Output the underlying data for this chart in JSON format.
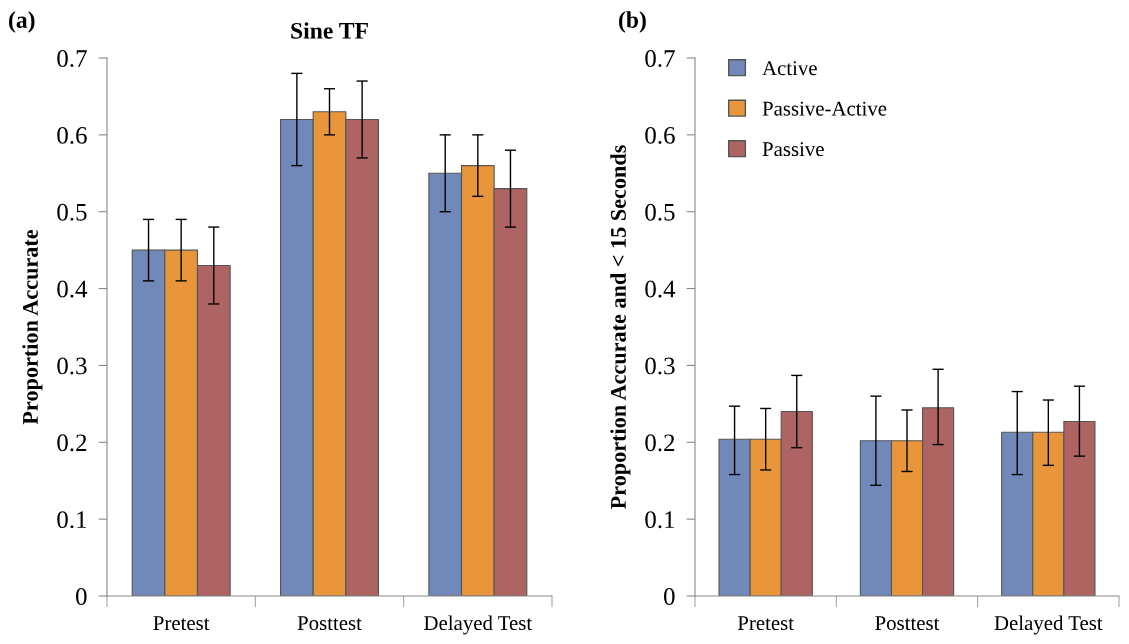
{
  "chart_data": [
    {
      "type": "bar",
      "title": "Sine TF",
      "ylabel": "Proportion Accurate",
      "annotations": [
        "(a)"
      ],
      "categories": [
        "Pretest",
        "Posttest",
        "Delayed Test"
      ],
      "ylim": [
        0,
        0.7
      ],
      "yticks": [
        {
          "value": 0,
          "label": "0"
        },
        0.1,
        0.2,
        0.3,
        0.4,
        0.5,
        0.6,
        0.7
      ],
      "grid": false,
      "legend": false,
      "series": [
        {
          "color": "#7189b8",
          "values": [
            0.45,
            0.62,
            0.55
          ],
          "errors": [
            [
              0.41,
              0.49
            ],
            [
              0.56,
              0.68
            ],
            [
              0.5,
              0.6
            ]
          ]
        },
        {
          "color": "#e9963a",
          "values": [
            0.45,
            0.63,
            0.56
          ],
          "errors": [
            [
              0.41,
              0.49
            ],
            [
              0.6,
              0.66
            ],
            [
              0.52,
              0.6
            ]
          ]
        },
        {
          "color": "#ad6463",
          "values": [
            0.43,
            0.62,
            0.53
          ],
          "errors": [
            [
              0.38,
              0.48
            ],
            [
              0.57,
              0.67
            ],
            [
              0.48,
              0.58
            ]
          ]
        }
      ]
    },
    {
      "type": "bar",
      "ylabel": "Proportion Accurate and < 15 Seconds",
      "annotations": [
        "(b)"
      ],
      "categories": [
        "Pretest",
        "Posttest",
        "Delayed Test"
      ],
      "ylim": [
        0,
        0.7
      ],
      "yticks": [
        {
          "value": 0,
          "label": "0"
        },
        0.1,
        0.2,
        0.3,
        0.4,
        0.5,
        0.6,
        0.7
      ],
      "grid": false,
      "legend": "top left",
      "series": [
        {
          "name": "Active",
          "color": "#7189b8",
          "values": [
            0.204,
            0.202,
            0.213
          ],
          "errors": [
            [
              0.158,
              0.247
            ],
            [
              0.144,
              0.26
            ],
            [
              0.158,
              0.266
            ]
          ]
        },
        {
          "name": "Passive-Active",
          "color": "#e9963a",
          "values": [
            0.204,
            0.202,
            0.213
          ],
          "errors": [
            [
              0.164,
              0.244
            ],
            [
              0.162,
              0.242
            ],
            [
              0.17,
              0.255
            ]
          ]
        },
        {
          "name": "Passive",
          "color": "#ad6463",
          "values": [
            0.24,
            0.245,
            0.227
          ],
          "errors": [
            [
              0.193,
              0.287
            ],
            [
              0.197,
              0.295
            ],
            [
              0.182,
              0.273
            ]
          ]
        }
      ]
    }
  ]
}
